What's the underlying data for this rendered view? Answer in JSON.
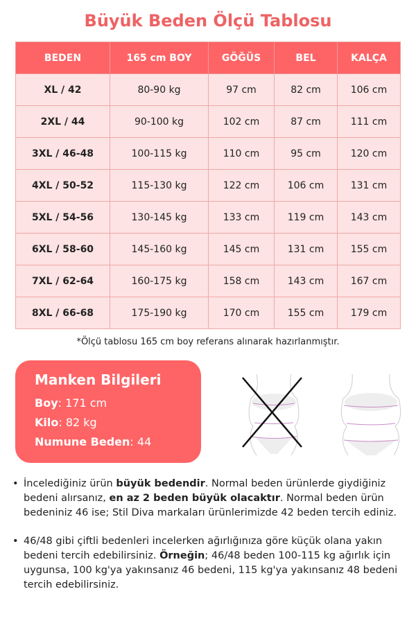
{
  "title": "Büyük Beden Ölçü Tablosu",
  "table": {
    "headers": [
      "BEDEN",
      "165 cm BOY",
      "GÖĞÜS",
      "BEL",
      "KALÇA"
    ],
    "rows": [
      [
        "XL / 42",
        "80-90 kg",
        "97 cm",
        "82 cm",
        "106 cm"
      ],
      [
        "2XL / 44",
        "90-100 kg",
        "102 cm",
        "87 cm",
        "111 cm"
      ],
      [
        "3XL / 46-48",
        "100-115 kg",
        "110 cm",
        "95 cm",
        "120 cm"
      ],
      [
        "4XL / 50-52",
        "115-130 kg",
        "122 cm",
        "106 cm",
        "131 cm"
      ],
      [
        "5XL / 54-56",
        "130-145 kg",
        "133 cm",
        "119 cm",
        "143 cm"
      ],
      [
        "6XL / 58-60",
        "145-160 kg",
        "145 cm",
        "131 cm",
        "155 cm"
      ],
      [
        "7XL / 62-64",
        "160-175 kg",
        "158 cm",
        "143 cm",
        "167 cm"
      ],
      [
        "8XL / 66-68",
        "175-190 kg",
        "170 cm",
        "155 cm",
        "179 cm"
      ]
    ]
  },
  "note": "*Ölçü tablosu 165 cm boy referans alınarak hazırlanmıştır.",
  "model": {
    "title": "Manken Bilgileri",
    "boy_label": "Boy",
    "boy": ": 171 cm",
    "kilo_label": "Kilo",
    "kilo": ": 82 kg",
    "beden_label": "Numune Beden",
    "beden": ": 44"
  },
  "bullets": [
    {
      "a": "İncelediğiniz ürün ",
      "b": "büyük bedendir",
      "c": ". Normal beden ürünlerde giydiğiniz bedeni alırsanız, ",
      "d": "en az 2 beden büyük olacaktır",
      "e": ". Normal beden ürün bedeniniz 46 ise; Stil Diva markaları ürünlerimizde 42 beden tercih ediniz."
    },
    {
      "a": "46/48 gibi çiftli bedenleri incelerken ağırlığınıza göre küçük olana yakın bedeni tercih edebilirsiniz. ",
      "b": "Örneğin",
      "c": "; 46/48 beden 100-115 kg ağırlık için uygunsa, 100 kg'ya yakınsanız 46 bedeni, 115 kg'ya yakınsanız 48 bedeni tercih edebilirsiniz.",
      "d": "",
      "e": ""
    }
  ],
  "colors": {
    "accent": "#fe6466",
    "row": "#fde3e3"
  }
}
